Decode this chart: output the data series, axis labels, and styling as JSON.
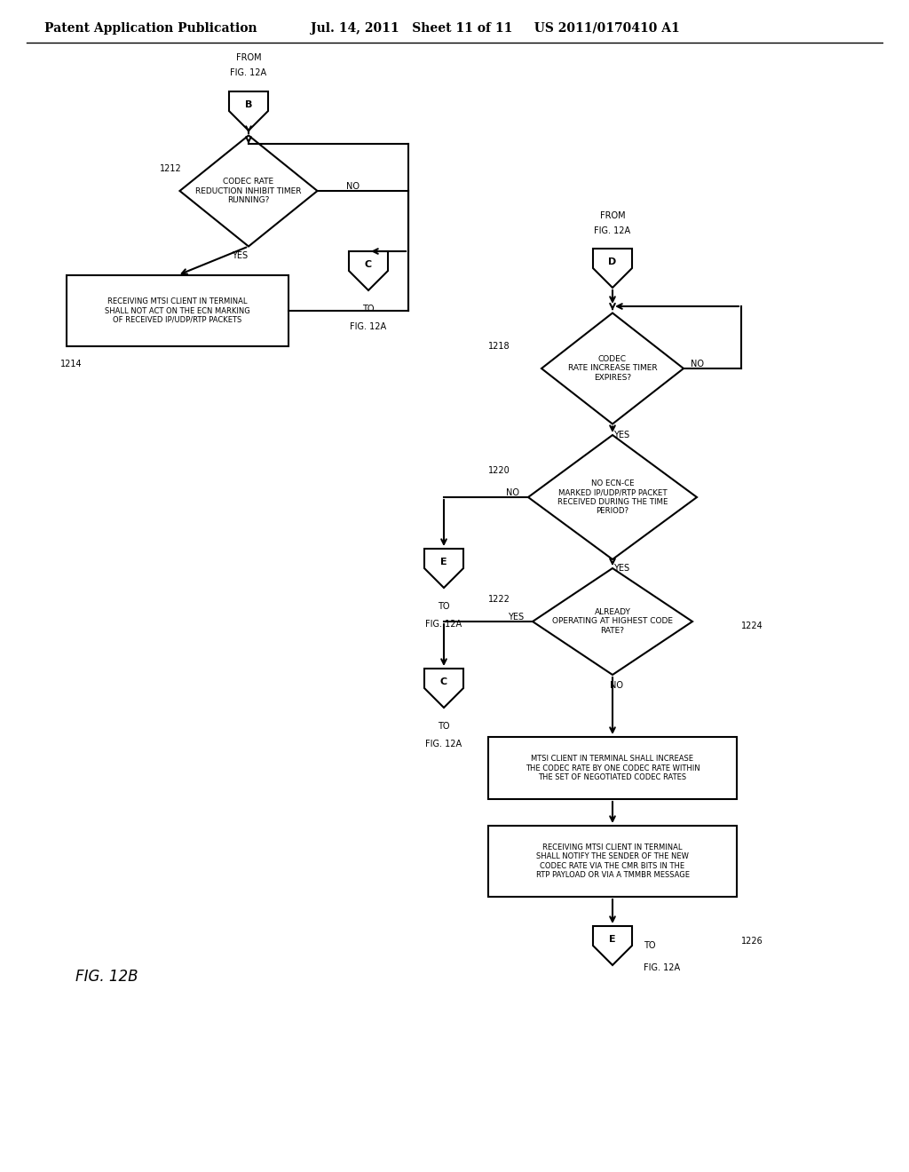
{
  "title_line1": "Patent Application Publication",
  "title_line2": "Jul. 14, 2011   Sheet 11 of 11     US 2011/0170410 A1",
  "fig_label": "FIG. 12B",
  "background_color": "#ffffff",
  "line_color": "#000000",
  "text_color": "#000000",
  "font_size_header": 10,
  "font_size_node": 7,
  "font_size_label": 8
}
